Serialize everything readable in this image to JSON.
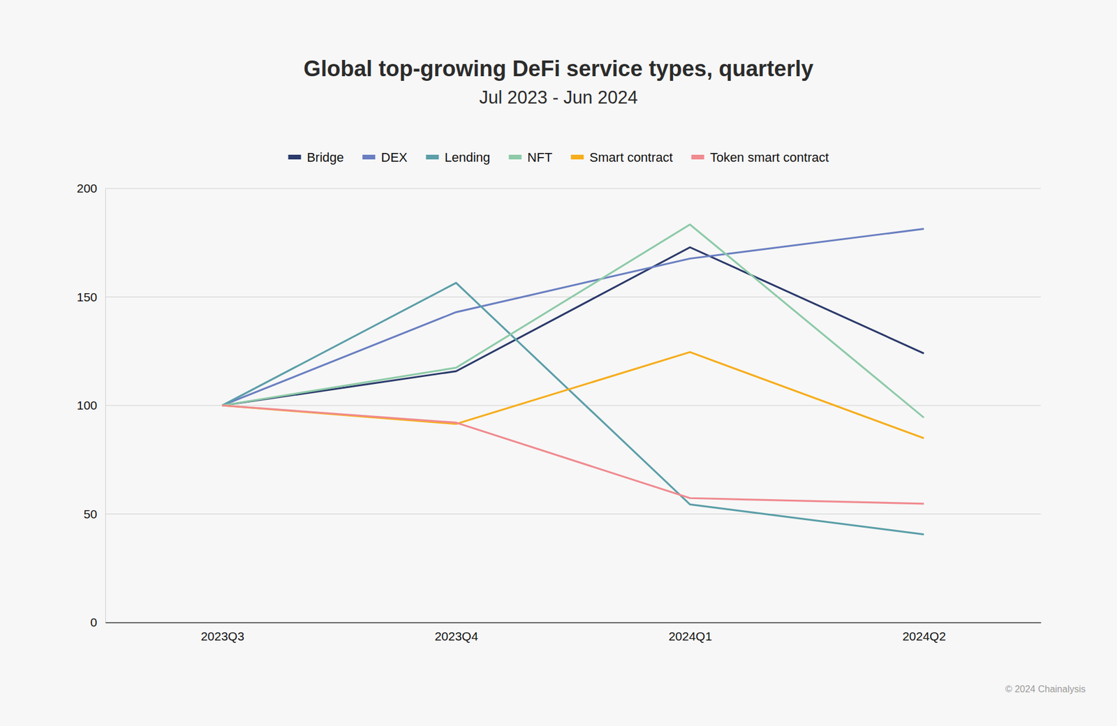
{
  "chart_data": {
    "type": "line",
    "title": "Global top-growing DeFi service types, quarterly",
    "subtitle": "Jul 2023 - Jun 2024",
    "source": "© 2024 Chainalysis",
    "categories": [
      "2023Q3",
      "2023Q4",
      "2024Q1",
      "2024Q2"
    ],
    "series": [
      {
        "name": "Bridge",
        "color": "#2b3a6b",
        "values": [
          100,
          115.8,
          172.9,
          124
        ]
      },
      {
        "name": "DEX",
        "color": "#6a7fc1",
        "values": [
          100,
          143,
          167.7,
          181.4
        ]
      },
      {
        "name": "Lending",
        "color": "#5b9ea8",
        "values": [
          100,
          156.5,
          54.4,
          40.6
        ]
      },
      {
        "name": "NFT",
        "color": "#8dcaa8",
        "values": [
          100,
          117.4,
          183.4,
          94.4
        ]
      },
      {
        "name": "Smart contract",
        "color": "#f6ad1b",
        "values": [
          100,
          91.5,
          124.6,
          84.9
        ]
      },
      {
        "name": "Token smart contract",
        "color": "#f08a8f",
        "values": [
          100,
          92.1,
          57.3,
          54.7
        ]
      }
    ],
    "ylim": [
      0,
      200
    ],
    "yticks": [
      0,
      50,
      100,
      150,
      200
    ],
    "grid": true,
    "legend": "top"
  }
}
